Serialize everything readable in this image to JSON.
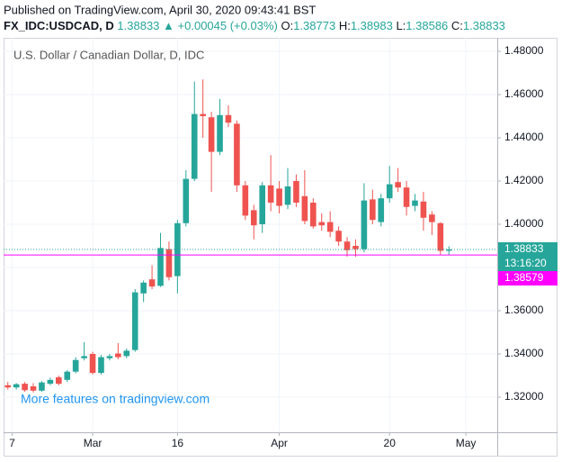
{
  "header": {
    "published": "Published on TradingView.com, April 30, 2020 09:43:41 BST",
    "symbol": "FX_IDC:USDCAD, D",
    "last": "1.38833",
    "change": "▲ +0.00045 (+0.03%)",
    "ohlc": [
      {
        "label": "O:",
        "value": "1.38773"
      },
      {
        "label": "H:",
        "value": "1.38983"
      },
      {
        "label": "L:",
        "value": "1.38586"
      },
      {
        "label": "C:",
        "value": "1.38833"
      }
    ]
  },
  "chart_data": {
    "type": "candlestick",
    "title": "U.S. Dollar / Canadian Dollar, D, IDC",
    "watermark": "More features on tradingview.com",
    "up_color": "#26a69a",
    "down_color": "#ef5350",
    "grid": true,
    "xlim": [
      -0.5,
      57.7
    ],
    "xticks": [
      {
        "value": 0.5,
        "label": "7"
      },
      {
        "value": 10,
        "label": "Mar"
      },
      {
        "value": 20,
        "label": "16"
      },
      {
        "value": 32,
        "label": "Apr"
      },
      {
        "value": 45,
        "label": "20"
      },
      {
        "value": 54,
        "label": "May"
      }
    ],
    "ylim": [
      1.30375,
      1.48625
    ],
    "yticks": [
      {
        "value": 1.32,
        "label": "1.32000"
      },
      {
        "value": 1.34,
        "label": "1.34000"
      },
      {
        "value": 1.36,
        "label": "1.36000"
      },
      {
        "value": 1.38,
        "label": "1.38000"
      },
      {
        "value": 1.4,
        "label": "1.40000"
      },
      {
        "value": 1.42,
        "label": "1.42000"
      },
      {
        "value": 1.44,
        "label": "1.44000"
      },
      {
        "value": 1.46,
        "label": "1.46000"
      },
      {
        "value": 1.48,
        "label": "1.48000"
      }
    ],
    "last_price": 1.38833,
    "last_color": "#26a69a",
    "countdown": "13:16:20",
    "marker_price": 1.38579,
    "marker_color": "#ff00ff",
    "open": [
      1.3255,
      1.3245,
      1.3262,
      1.325,
      1.323,
      1.3262,
      1.3292,
      1.328,
      1.3318,
      1.338,
      1.34,
      1.3312,
      1.338,
      1.3402,
      1.339,
      1.3418,
      1.368,
      1.3745,
      1.3715,
      1.3885,
      1.376,
      1.4005,
      1.421,
      1.451,
      1.4495,
      1.4335,
      1.4505,
      1.4465,
      1.418,
      1.4065,
      1.4,
      1.418,
      1.4165,
      1.409,
      1.42,
      1.413,
      1.41,
      1.401,
      1.401,
      1.397,
      1.392,
      1.39,
      1.3885,
      1.4115,
      1.401,
      1.412,
      1.4195,
      1.417,
      1.4085,
      1.4105,
      1.4045,
      1.4005,
      1.38773
    ],
    "high": [
      1.327,
      1.3265,
      1.327,
      1.3265,
      1.3275,
      1.329,
      1.33,
      1.3325,
      1.3385,
      1.3455,
      1.341,
      1.3395,
      1.34,
      1.345,
      1.3425,
      1.37,
      1.374,
      1.381,
      1.396,
      1.392,
      1.402,
      1.425,
      1.466,
      1.467,
      1.452,
      1.458,
      1.455,
      1.448,
      1.42,
      1.409,
      1.4195,
      1.432,
      1.42,
      1.426,
      1.423,
      1.425,
      1.412,
      1.405,
      1.406,
      1.399,
      1.394,
      1.393,
      1.419,
      1.416,
      1.414,
      1.427,
      1.426,
      1.42,
      1.414,
      1.415,
      1.406,
      1.401,
      1.38983
    ],
    "low": [
      1.3235,
      1.3235,
      1.3225,
      1.3222,
      1.3225,
      1.3255,
      1.3255,
      1.327,
      1.331,
      1.337,
      1.3305,
      1.3305,
      1.337,
      1.3375,
      1.338,
      1.341,
      1.364,
      1.37,
      1.371,
      1.374,
      1.368,
      1.399,
      1.42,
      1.44,
      1.415,
      1.432,
      1.445,
      1.415,
      1.402,
      1.393,
      1.396,
      1.406,
      1.405,
      1.407,
      1.408,
      1.4,
      1.398,
      1.397,
      1.394,
      1.39,
      1.385,
      1.385,
      1.387,
      1.4,
      1.399,
      1.41,
      1.415,
      1.404,
      1.406,
      1.397,
      1.395,
      1.386,
      1.38586
    ],
    "close": [
      1.3245,
      1.326,
      1.3232,
      1.323,
      1.3268,
      1.328,
      1.3262,
      1.3318,
      1.3372,
      1.339,
      1.3312,
      1.3385,
      1.339,
      1.3385,
      1.3415,
      1.3685,
      1.373,
      1.3712,
      1.389,
      1.3755,
      1.4005,
      1.421,
      1.451,
      1.45,
      1.4335,
      1.4505,
      1.447,
      1.418,
      1.404,
      1.3995,
      1.418,
      1.41,
      1.4085,
      1.4175,
      1.41,
      1.4015,
      1.399,
      1.3995,
      1.3965,
      1.392,
      1.388,
      1.3885,
      1.411,
      1.402,
      1.412,
      1.4185,
      1.417,
      1.408,
      1.411,
      1.403,
      1.401,
      1.3877,
      1.38833
    ]
  }
}
